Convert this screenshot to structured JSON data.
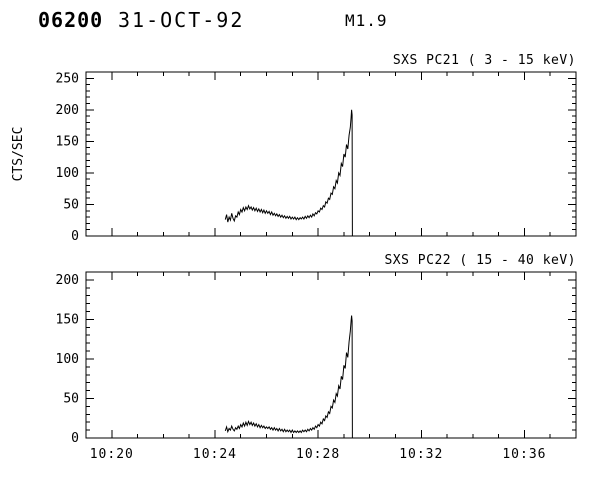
{
  "header": {
    "obs_id": "06200",
    "date": "31-OCT-92",
    "flare_class": "M1.9"
  },
  "chart_data": [
    {
      "type": "line",
      "title": "SXS PC21  (  3 - 15 keV)",
      "ylabel": "CTS/SEC",
      "xlabel": "",
      "xlim": [
        19,
        38
      ],
      "ylim": [
        0,
        260
      ],
      "yticks": [
        0,
        50,
        100,
        150,
        200,
        250
      ],
      "y_minor": 10,
      "xticks": [
        20,
        24,
        28,
        32,
        36
      ],
      "xtick_labels": [],
      "x_minor": 1,
      "grid": false,
      "points": [
        [
          24.4,
          26
        ],
        [
          24.45,
          34
        ],
        [
          24.5,
          22
        ],
        [
          24.55,
          30
        ],
        [
          24.6,
          25
        ],
        [
          24.65,
          36
        ],
        [
          24.7,
          28
        ],
        [
          24.75,
          24
        ],
        [
          24.8,
          32
        ],
        [
          24.85,
          30
        ],
        [
          24.9,
          38
        ],
        [
          24.95,
          34
        ],
        [
          25.0,
          42
        ],
        [
          25.05,
          38
        ],
        [
          25.1,
          45
        ],
        [
          25.15,
          40
        ],
        [
          25.2,
          46
        ],
        [
          25.25,
          42
        ],
        [
          25.3,
          48
        ],
        [
          25.35,
          43
        ],
        [
          25.4,
          46
        ],
        [
          25.45,
          41
        ],
        [
          25.5,
          45
        ],
        [
          25.55,
          40
        ],
        [
          25.6,
          44
        ],
        [
          25.65,
          39
        ],
        [
          25.7,
          43
        ],
        [
          25.75,
          38
        ],
        [
          25.8,
          42
        ],
        [
          25.85,
          37
        ],
        [
          25.9,
          41
        ],
        [
          25.95,
          36
        ],
        [
          26.0,
          40
        ],
        [
          26.05,
          36
        ],
        [
          26.1,
          39
        ],
        [
          26.15,
          34
        ],
        [
          26.2,
          38
        ],
        [
          26.25,
          33
        ],
        [
          26.3,
          36
        ],
        [
          26.35,
          32
        ],
        [
          26.4,
          35
        ],
        [
          26.45,
          31
        ],
        [
          26.5,
          34
        ],
        [
          26.55,
          30
        ],
        [
          26.6,
          33
        ],
        [
          26.65,
          29
        ],
        [
          26.7,
          32
        ],
        [
          26.75,
          28
        ],
        [
          26.8,
          31
        ],
        [
          26.85,
          28
        ],
        [
          26.9,
          31
        ],
        [
          26.95,
          27
        ],
        [
          27.0,
          30
        ],
        [
          27.05,
          27
        ],
        [
          27.1,
          30
        ],
        [
          27.15,
          26
        ],
        [
          27.2,
          29
        ],
        [
          27.25,
          26
        ],
        [
          27.3,
          29
        ],
        [
          27.35,
          27
        ],
        [
          27.4,
          30
        ],
        [
          27.45,
          27
        ],
        [
          27.5,
          31
        ],
        [
          27.55,
          28
        ],
        [
          27.6,
          32
        ],
        [
          27.65,
          29
        ],
        [
          27.7,
          33
        ],
        [
          27.75,
          30
        ],
        [
          27.8,
          35
        ],
        [
          27.85,
          32
        ],
        [
          27.9,
          37
        ],
        [
          27.95,
          35
        ],
        [
          28.0,
          40
        ],
        [
          28.05,
          38
        ],
        [
          28.1,
          44
        ],
        [
          28.15,
          42
        ],
        [
          28.2,
          48
        ],
        [
          28.25,
          46
        ],
        [
          28.3,
          54
        ],
        [
          28.35,
          52
        ],
        [
          28.4,
          60
        ],
        [
          28.45,
          58
        ],
        [
          28.5,
          68
        ],
        [
          28.55,
          66
        ],
        [
          28.6,
          78
        ],
        [
          28.65,
          75
        ],
        [
          28.7,
          88
        ],
        [
          28.75,
          84
        ],
        [
          28.8,
          100
        ],
        [
          28.85,
          96
        ],
        [
          28.9,
          115
        ],
        [
          28.95,
          110
        ],
        [
          29.0,
          130
        ],
        [
          29.05,
          125
        ],
        [
          29.1,
          145
        ],
        [
          29.15,
          138
        ],
        [
          29.2,
          160
        ],
        [
          29.25,
          172
        ],
        [
          29.28,
          188
        ],
        [
          29.3,
          200
        ],
        [
          29.32,
          192
        ],
        [
          29.33,
          0
        ]
      ]
    },
    {
      "type": "line",
      "title": "SXS PC22  ( 15 - 40 keV)",
      "ylabel": "",
      "xlabel": "",
      "xlim": [
        19,
        38
      ],
      "ylim": [
        0,
        210
      ],
      "yticks": [
        0,
        50,
        100,
        150,
        200
      ],
      "y_minor": 10,
      "xticks": [
        20,
        24,
        28,
        32,
        36
      ],
      "xtick_labels": [
        "10:20",
        "10:24",
        "10:28",
        "10:32",
        "10:36"
      ],
      "x_minor": 1,
      "grid": false,
      "points": [
        [
          24.4,
          9
        ],
        [
          24.45,
          14
        ],
        [
          24.5,
          8
        ],
        [
          24.55,
          12
        ],
        [
          24.6,
          10
        ],
        [
          24.65,
          15
        ],
        [
          24.7,
          11
        ],
        [
          24.75,
          9
        ],
        [
          24.8,
          13
        ],
        [
          24.85,
          11
        ],
        [
          24.9,
          15
        ],
        [
          24.95,
          12
        ],
        [
          25.0,
          17
        ],
        [
          25.05,
          14
        ],
        [
          25.1,
          19
        ],
        [
          25.15,
          15
        ],
        [
          25.2,
          20
        ],
        [
          25.25,
          16
        ],
        [
          25.3,
          21
        ],
        [
          25.35,
          17
        ],
        [
          25.4,
          20
        ],
        [
          25.45,
          16
        ],
        [
          25.5,
          19
        ],
        [
          25.55,
          15
        ],
        [
          25.6,
          18
        ],
        [
          25.65,
          14
        ],
        [
          25.7,
          17
        ],
        [
          25.75,
          13
        ],
        [
          25.8,
          16
        ],
        [
          25.85,
          13
        ],
        [
          25.9,
          15
        ],
        [
          25.95,
          12
        ],
        [
          26.0,
          14
        ],
        [
          26.05,
          12
        ],
        [
          26.1,
          14
        ],
        [
          26.15,
          11
        ],
        [
          26.2,
          13
        ],
        [
          26.25,
          10
        ],
        [
          26.3,
          13
        ],
        [
          26.35,
          10
        ],
        [
          26.4,
          12
        ],
        [
          26.45,
          9
        ],
        [
          26.5,
          12
        ],
        [
          26.55,
          9
        ],
        [
          26.6,
          11
        ],
        [
          26.65,
          8
        ],
        [
          26.7,
          11
        ],
        [
          26.75,
          8
        ],
        [
          26.8,
          10
        ],
        [
          26.85,
          8
        ],
        [
          26.9,
          10
        ],
        [
          26.95,
          7
        ],
        [
          27.0,
          10
        ],
        [
          27.05,
          7
        ],
        [
          27.1,
          9
        ],
        [
          27.15,
          7
        ],
        [
          27.2,
          9
        ],
        [
          27.25,
          7
        ],
        [
          27.3,
          9
        ],
        [
          27.35,
          7
        ],
        [
          27.4,
          10
        ],
        [
          27.45,
          8
        ],
        [
          27.5,
          10
        ],
        [
          27.55,
          8
        ],
        [
          27.6,
          11
        ],
        [
          27.65,
          9
        ],
        [
          27.7,
          12
        ],
        [
          27.75,
          10
        ],
        [
          27.8,
          13
        ],
        [
          27.85,
          11
        ],
        [
          27.9,
          15
        ],
        [
          27.95,
          13
        ],
        [
          28.0,
          17
        ],
        [
          28.05,
          15
        ],
        [
          28.1,
          20
        ],
        [
          28.15,
          18
        ],
        [
          28.2,
          24
        ],
        [
          28.25,
          22
        ],
        [
          28.3,
          28
        ],
        [
          28.35,
          26
        ],
        [
          28.4,
          33
        ],
        [
          28.45,
          31
        ],
        [
          28.5,
          40
        ],
        [
          28.55,
          38
        ],
        [
          28.6,
          48
        ],
        [
          28.65,
          45
        ],
        [
          28.7,
          56
        ],
        [
          28.75,
          53
        ],
        [
          28.8,
          66
        ],
        [
          28.85,
          62
        ],
        [
          28.9,
          78
        ],
        [
          28.95,
          74
        ],
        [
          29.0,
          92
        ],
        [
          29.05,
          88
        ],
        [
          29.1,
          108
        ],
        [
          29.15,
          102
        ],
        [
          29.2,
          122
        ],
        [
          29.25,
          135
        ],
        [
          29.28,
          148
        ],
        [
          29.3,
          155
        ],
        [
          29.32,
          148
        ],
        [
          29.33,
          0
        ]
      ]
    }
  ],
  "colors": {
    "foreground": "#000000",
    "background": "#ffffff"
  }
}
